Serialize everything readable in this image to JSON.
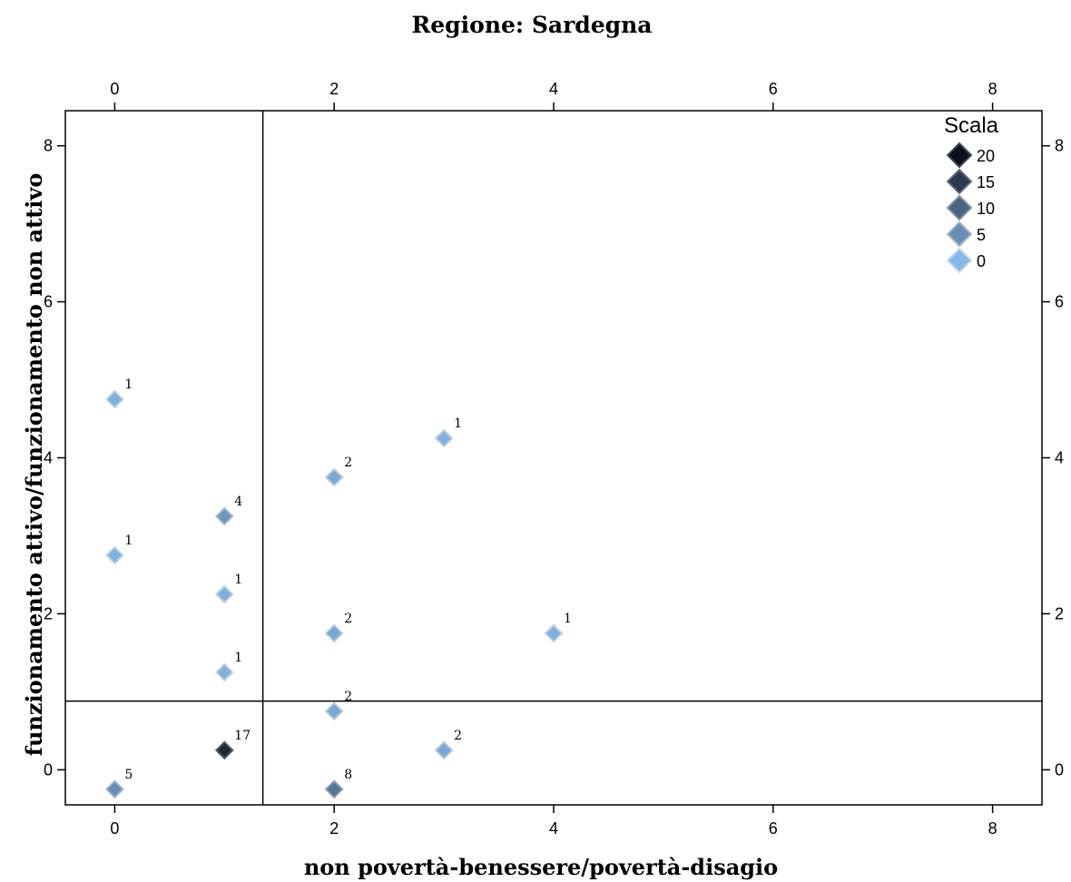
{
  "chart_data": {
    "type": "scatter",
    "title": "Regione: Sardegna",
    "xlabel": "non povertà-benessere/povertà-disagio",
    "ylabel": "funzionamento attivo/funzionamento non attivo",
    "xlim": [
      -0.45,
      8.45
    ],
    "ylim": [
      -0.45,
      8.45
    ],
    "x_ticks": [
      0,
      2,
      4,
      6,
      8
    ],
    "y_ticks": [
      0,
      2,
      4,
      6,
      8
    ],
    "x_tick_labels": [
      "0",
      "2",
      "4",
      "6",
      "8"
    ],
    "y_tick_labels": [
      "0",
      "2",
      "4",
      "6",
      "8"
    ],
    "marker": "diamond",
    "reference_lines": {
      "vertical_x": 1.35,
      "horizontal_y": 0.88
    },
    "points": [
      {
        "x": 0,
        "y": 4.75,
        "count": 1,
        "label": "1"
      },
      {
        "x": 0,
        "y": 2.75,
        "count": 1,
        "label": "1"
      },
      {
        "x": 0,
        "y": -0.25,
        "count": 5,
        "label": "5"
      },
      {
        "x": 1,
        "y": 3.25,
        "count": 4,
        "label": "4"
      },
      {
        "x": 1,
        "y": 2.25,
        "count": 1,
        "label": "1"
      },
      {
        "x": 1,
        "y": 1.25,
        "count": 1,
        "label": "1"
      },
      {
        "x": 1,
        "y": 0.25,
        "count": 17,
        "label": "17"
      },
      {
        "x": 2,
        "y": 3.75,
        "count": 2,
        "label": "2"
      },
      {
        "x": 2,
        "y": 1.75,
        "count": 2,
        "label": "2"
      },
      {
        "x": 2,
        "y": 0.75,
        "count": 2,
        "label": "2"
      },
      {
        "x": 2,
        "y": -0.25,
        "count": 8,
        "label": "8"
      },
      {
        "x": 3,
        "y": 4.25,
        "count": 1,
        "label": "1"
      },
      {
        "x": 3,
        "y": 0.25,
        "count": 2,
        "label": "2"
      },
      {
        "x": 4,
        "y": 1.75,
        "count": 1,
        "label": "1"
      }
    ],
    "legend": {
      "title": "Scala",
      "placement": "top-right",
      "entries": [
        {
          "label": "20",
          "value": 20
        },
        {
          "label": "15",
          "value": 15
        },
        {
          "label": "10",
          "value": 10
        },
        {
          "label": "5",
          "value": 5
        },
        {
          "label": "0",
          "value": 0
        }
      ]
    },
    "color_scale": {
      "low": "#85b9e8",
      "high": "#0d1117"
    }
  }
}
